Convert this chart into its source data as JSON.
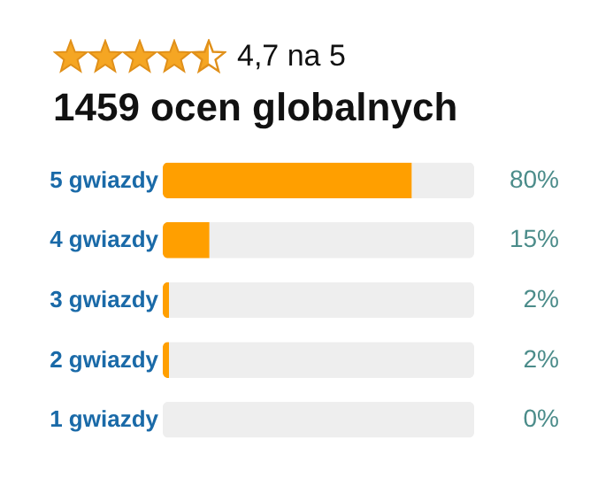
{
  "chart_data": {
    "type": "bar",
    "orientation": "horizontal",
    "stacked": true,
    "title": "4,7 na 5",
    "subtitle": "1459 ocen globalnych",
    "categories": [
      "5 gwiazdy",
      "4 gwiazdy",
      "3 gwiazdy",
      "2 gwiazdy",
      "1 gwiazdy"
    ],
    "series": [
      {
        "color": "#ff9f00",
        "values": [
          80,
          15,
          2,
          2,
          0
        ],
        "value_labels": [
          "80%",
          "15%",
          "2%",
          "2%",
          "0%"
        ]
      },
      {
        "color": "#eeeeee",
        "values": [
          20,
          85,
          98,
          98,
          100
        ]
      }
    ],
    "xlim": [
      0,
      100
    ],
    "tick_labels": "y"
  }
}
